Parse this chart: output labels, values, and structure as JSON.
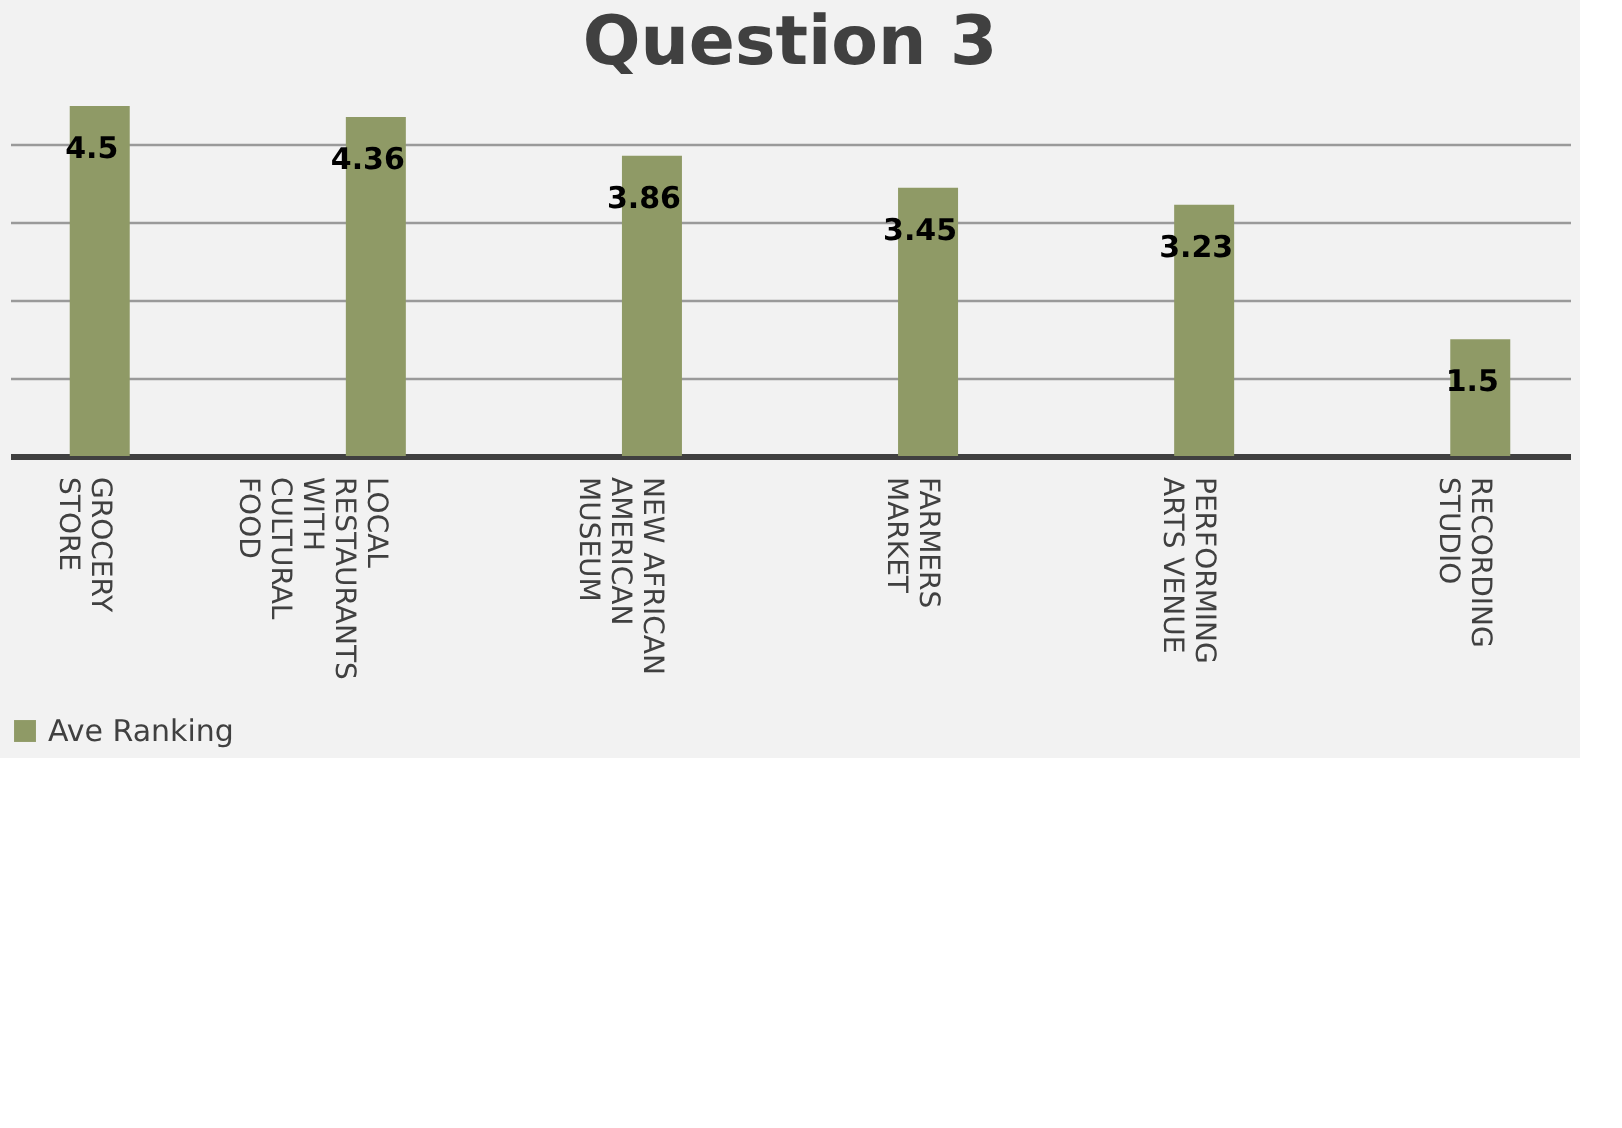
{
  "chart_data": {
    "type": "bar",
    "title": "Question 3",
    "categories": [
      "GROCERY STORE",
      "LOCAL RESTAURANTS WITH CULTURAL FOOD",
      "NEW AFRICAN AMERICAN MUSEUM",
      "FARMERS MARKET",
      "PERFORMING ARTS VENUE",
      "RECORDING STUDIO"
    ],
    "series": [
      {
        "name": "Ave Ranking",
        "color": "#8f9a66",
        "values": [
          4.5,
          4.36,
          3.86,
          3.45,
          3.23,
          1.5
        ]
      }
    ],
    "tick_labels": "x",
    "grid": "y",
    "legend": "bottom",
    "data_labels": true
  }
}
